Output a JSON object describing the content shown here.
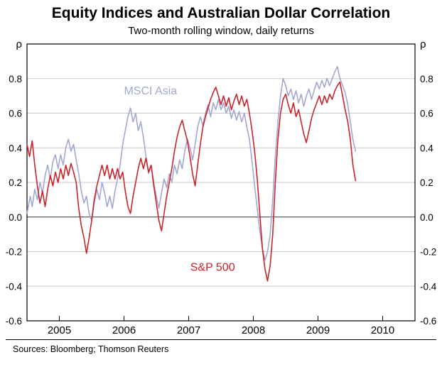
{
  "title": "Equity Indices and Australian Dollar Correlation",
  "subtitle": "Two-month rolling window, daily returns",
  "footer": {
    "sources": "Sources: Bloomberg; Thomson Reuters"
  },
  "chart_data": {
    "type": "line",
    "title": "Equity Indices and Australian Dollar Correlation",
    "subtitle": "Two-month rolling window, daily returns",
    "ylabel_left": "ρ",
    "ylabel_right": "ρ",
    "xlim": [
      2004.5,
      2010.5
    ],
    "ylim": [
      -0.6,
      1.0
    ],
    "yticks": [
      0.8,
      0.6,
      0.4,
      0.2,
      0.0,
      -0.2,
      -0.4,
      -0.6
    ],
    "xticks": [
      2005,
      2006,
      2007,
      2008,
      2009,
      2010
    ],
    "grid": "horizontal",
    "zero_line": true,
    "legend": "inline series labels",
    "annotations": [
      {
        "text": "MSCI Asia",
        "x": 2006.41,
        "y": 0.73,
        "color": "#a3a8d2"
      },
      {
        "text": "S&P 500",
        "x": 2007.37,
        "y": -0.29,
        "color": "#cb232a"
      }
    ],
    "series": [
      {
        "name": "MSCI Asia",
        "color": "#a3a8d2",
        "points": [
          [
            2004.5,
            0.02
          ],
          [
            2004.55,
            0.12
          ],
          [
            2004.58,
            0.06
          ],
          [
            2004.62,
            0.16
          ],
          [
            2004.66,
            0.1
          ],
          [
            2004.7,
            0.2
          ],
          [
            2004.74,
            0.14
          ],
          [
            2004.78,
            0.24
          ],
          [
            2004.82,
            0.3
          ],
          [
            2004.86,
            0.22
          ],
          [
            2004.9,
            0.32
          ],
          [
            2004.94,
            0.36
          ],
          [
            2004.98,
            0.28
          ],
          [
            2005.02,
            0.36
          ],
          [
            2005.06,
            0.3
          ],
          [
            2005.1,
            0.4
          ],
          [
            2005.14,
            0.45
          ],
          [
            2005.18,
            0.38
          ],
          [
            2005.22,
            0.42
          ],
          [
            2005.26,
            0.33
          ],
          [
            2005.3,
            0.25
          ],
          [
            2005.34,
            0.15
          ],
          [
            2005.38,
            0.08
          ],
          [
            2005.42,
            0.12
          ],
          [
            2005.46,
            0.02
          ],
          [
            2005.5,
            -0.02
          ],
          [
            2005.54,
            0.08
          ],
          [
            2005.58,
            0.16
          ],
          [
            2005.62,
            0.1
          ],
          [
            2005.66,
            0.2
          ],
          [
            2005.7,
            0.14
          ],
          [
            2005.74,
            0.06
          ],
          [
            2005.78,
            0.12
          ],
          [
            2005.82,
            0.05
          ],
          [
            2005.86,
            0.15
          ],
          [
            2005.9,
            0.22
          ],
          [
            2005.94,
            0.3
          ],
          [
            2005.98,
            0.42
          ],
          [
            2006.02,
            0.5
          ],
          [
            2006.06,
            0.58
          ],
          [
            2006.1,
            0.63
          ],
          [
            2006.14,
            0.55
          ],
          [
            2006.18,
            0.6
          ],
          [
            2006.22,
            0.5
          ],
          [
            2006.26,
            0.55
          ],
          [
            2006.3,
            0.46
          ],
          [
            2006.34,
            0.35
          ],
          [
            2006.38,
            0.25
          ],
          [
            2006.42,
            0.3
          ],
          [
            2006.46,
            0.2
          ],
          [
            2006.5,
            0.12
          ],
          [
            2006.54,
            0.05
          ],
          [
            2006.58,
            0.14
          ],
          [
            2006.62,
            0.22
          ],
          [
            2006.66,
            0.17
          ],
          [
            2006.7,
            0.25
          ],
          [
            2006.74,
            0.2
          ],
          [
            2006.78,
            0.3
          ],
          [
            2006.82,
            0.25
          ],
          [
            2006.86,
            0.33
          ],
          [
            2006.9,
            0.28
          ],
          [
            2006.94,
            0.38
          ],
          [
            2006.98,
            0.45
          ],
          [
            2007.02,
            0.4
          ],
          [
            2007.06,
            0.33
          ],
          [
            2007.1,
            0.42
          ],
          [
            2007.14,
            0.52
          ],
          [
            2007.18,
            0.58
          ],
          [
            2007.22,
            0.53
          ],
          [
            2007.26,
            0.6
          ],
          [
            2007.3,
            0.65
          ],
          [
            2007.34,
            0.58
          ],
          [
            2007.38,
            0.66
          ],
          [
            2007.42,
            0.62
          ],
          [
            2007.46,
            0.68
          ],
          [
            2007.5,
            0.62
          ],
          [
            2007.54,
            0.66
          ],
          [
            2007.58,
            0.6
          ],
          [
            2007.62,
            0.64
          ],
          [
            2007.66,
            0.57
          ],
          [
            2007.7,
            0.62
          ],
          [
            2007.74,
            0.56
          ],
          [
            2007.78,
            0.61
          ],
          [
            2007.82,
            0.55
          ],
          [
            2007.86,
            0.6
          ],
          [
            2007.9,
            0.52
          ],
          [
            2007.94,
            0.45
          ],
          [
            2007.98,
            0.32
          ],
          [
            2008.02,
            0.18
          ],
          [
            2008.06,
            0.05
          ],
          [
            2008.1,
            -0.08
          ],
          [
            2008.14,
            -0.18
          ],
          [
            2008.18,
            -0.25
          ],
          [
            2008.22,
            -0.2
          ],
          [
            2008.26,
            -0.1
          ],
          [
            2008.3,
            0.1
          ],
          [
            2008.34,
            0.35
          ],
          [
            2008.38,
            0.55
          ],
          [
            2008.42,
            0.7
          ],
          [
            2008.46,
            0.8
          ],
          [
            2008.5,
            0.76
          ],
          [
            2008.54,
            0.7
          ],
          [
            2008.58,
            0.74
          ],
          [
            2008.62,
            0.68
          ],
          [
            2008.66,
            0.73
          ],
          [
            2008.7,
            0.66
          ],
          [
            2008.74,
            0.71
          ],
          [
            2008.78,
            0.64
          ],
          [
            2008.82,
            0.7
          ],
          [
            2008.86,
            0.74
          ],
          [
            2008.9,
            0.68
          ],
          [
            2008.94,
            0.73
          ],
          [
            2008.98,
            0.78
          ],
          [
            2009.02,
            0.74
          ],
          [
            2009.06,
            0.79
          ],
          [
            2009.1,
            0.75
          ],
          [
            2009.14,
            0.8
          ],
          [
            2009.18,
            0.76
          ],
          [
            2009.22,
            0.8
          ],
          [
            2009.26,
            0.84
          ],
          [
            2009.3,
            0.87
          ],
          [
            2009.34,
            0.8
          ],
          [
            2009.38,
            0.76
          ],
          [
            2009.42,
            0.72
          ],
          [
            2009.46,
            0.65
          ],
          [
            2009.5,
            0.55
          ],
          [
            2009.54,
            0.45
          ],
          [
            2009.58,
            0.38
          ]
        ]
      },
      {
        "name": "S&P 500",
        "color": "#cb232a",
        "points": [
          [
            2004.5,
            0.42
          ],
          [
            2004.54,
            0.35
          ],
          [
            2004.58,
            0.44
          ],
          [
            2004.62,
            0.3
          ],
          [
            2004.66,
            0.18
          ],
          [
            2004.7,
            0.08
          ],
          [
            2004.74,
            0.15
          ],
          [
            2004.78,
            0.06
          ],
          [
            2004.82,
            0.16
          ],
          [
            2004.86,
            0.24
          ],
          [
            2004.9,
            0.18
          ],
          [
            2004.94,
            0.26
          ],
          [
            2004.98,
            0.2
          ],
          [
            2005.02,
            0.28
          ],
          [
            2005.06,
            0.22
          ],
          [
            2005.1,
            0.3
          ],
          [
            2005.14,
            0.24
          ],
          [
            2005.18,
            0.31
          ],
          [
            2005.22,
            0.26
          ],
          [
            2005.26,
            0.2
          ],
          [
            2005.3,
            0.05
          ],
          [
            2005.34,
            -0.05
          ],
          [
            2005.38,
            -0.12
          ],
          [
            2005.42,
            -0.21
          ],
          [
            2005.46,
            -0.12
          ],
          [
            2005.5,
            -0.02
          ],
          [
            2005.54,
            0.1
          ],
          [
            2005.58,
            0.18
          ],
          [
            2005.62,
            0.24
          ],
          [
            2005.66,
            0.3
          ],
          [
            2005.7,
            0.24
          ],
          [
            2005.74,
            0.3
          ],
          [
            2005.78,
            0.22
          ],
          [
            2005.82,
            0.28
          ],
          [
            2005.86,
            0.22
          ],
          [
            2005.9,
            0.28
          ],
          [
            2005.94,
            0.22
          ],
          [
            2005.98,
            0.26
          ],
          [
            2006.02,
            0.15
          ],
          [
            2006.06,
            0.06
          ],
          [
            2006.1,
            0.02
          ],
          [
            2006.14,
            0.12
          ],
          [
            2006.18,
            0.2
          ],
          [
            2006.22,
            0.28
          ],
          [
            2006.26,
            0.34
          ],
          [
            2006.3,
            0.28
          ],
          [
            2006.34,
            0.34
          ],
          [
            2006.38,
            0.26
          ],
          [
            2006.42,
            0.3
          ],
          [
            2006.46,
            0.18
          ],
          [
            2006.5,
            0.08
          ],
          [
            2006.54,
            -0.02
          ],
          [
            2006.58,
            -0.08
          ],
          [
            2006.62,
            0.02
          ],
          [
            2006.66,
            0.12
          ],
          [
            2006.7,
            0.2
          ],
          [
            2006.74,
            0.28
          ],
          [
            2006.78,
            0.38
          ],
          [
            2006.82,
            0.46
          ],
          [
            2006.86,
            0.52
          ],
          [
            2006.9,
            0.56
          ],
          [
            2006.94,
            0.5
          ],
          [
            2006.98,
            0.44
          ],
          [
            2007.02,
            0.35
          ],
          [
            2007.06,
            0.25
          ],
          [
            2007.1,
            0.18
          ],
          [
            2007.14,
            0.3
          ],
          [
            2007.18,
            0.42
          ],
          [
            2007.22,
            0.52
          ],
          [
            2007.26,
            0.58
          ],
          [
            2007.3,
            0.63
          ],
          [
            2007.34,
            0.68
          ],
          [
            2007.38,
            0.72
          ],
          [
            2007.42,
            0.75
          ],
          [
            2007.46,
            0.7
          ],
          [
            2007.5,
            0.65
          ],
          [
            2007.54,
            0.7
          ],
          [
            2007.58,
            0.64
          ],
          [
            2007.62,
            0.69
          ],
          [
            2007.66,
            0.62
          ],
          [
            2007.7,
            0.67
          ],
          [
            2007.74,
            0.71
          ],
          [
            2007.78,
            0.65
          ],
          [
            2007.82,
            0.7
          ],
          [
            2007.86,
            0.64
          ],
          [
            2007.9,
            0.68
          ],
          [
            2007.94,
            0.6
          ],
          [
            2007.98,
            0.5
          ],
          [
            2008.02,
            0.38
          ],
          [
            2008.06,
            0.22
          ],
          [
            2008.1,
            0.02
          ],
          [
            2008.14,
            -0.18
          ],
          [
            2008.18,
            -0.3
          ],
          [
            2008.22,
            -0.37
          ],
          [
            2008.26,
            -0.28
          ],
          [
            2008.3,
            -0.1
          ],
          [
            2008.34,
            0.2
          ],
          [
            2008.38,
            0.45
          ],
          [
            2008.42,
            0.6
          ],
          [
            2008.46,
            0.68
          ],
          [
            2008.5,
            0.71
          ],
          [
            2008.54,
            0.65
          ],
          [
            2008.58,
            0.6
          ],
          [
            2008.62,
            0.66
          ],
          [
            2008.66,
            0.58
          ],
          [
            2008.7,
            0.62
          ],
          [
            2008.74,
            0.55
          ],
          [
            2008.78,
            0.48
          ],
          [
            2008.82,
            0.43
          ],
          [
            2008.86,
            0.5
          ],
          [
            2008.9,
            0.57
          ],
          [
            2008.94,
            0.62
          ],
          [
            2008.98,
            0.66
          ],
          [
            2009.02,
            0.7
          ],
          [
            2009.06,
            0.65
          ],
          [
            2009.1,
            0.7
          ],
          [
            2009.14,
            0.66
          ],
          [
            2009.18,
            0.71
          ],
          [
            2009.22,
            0.68
          ],
          [
            2009.26,
            0.73
          ],
          [
            2009.3,
            0.76
          ],
          [
            2009.34,
            0.78
          ],
          [
            2009.38,
            0.7
          ],
          [
            2009.42,
            0.62
          ],
          [
            2009.46,
            0.55
          ],
          [
            2009.5,
            0.45
          ],
          [
            2009.54,
            0.3
          ],
          [
            2009.58,
            0.21
          ]
        ]
      }
    ]
  }
}
